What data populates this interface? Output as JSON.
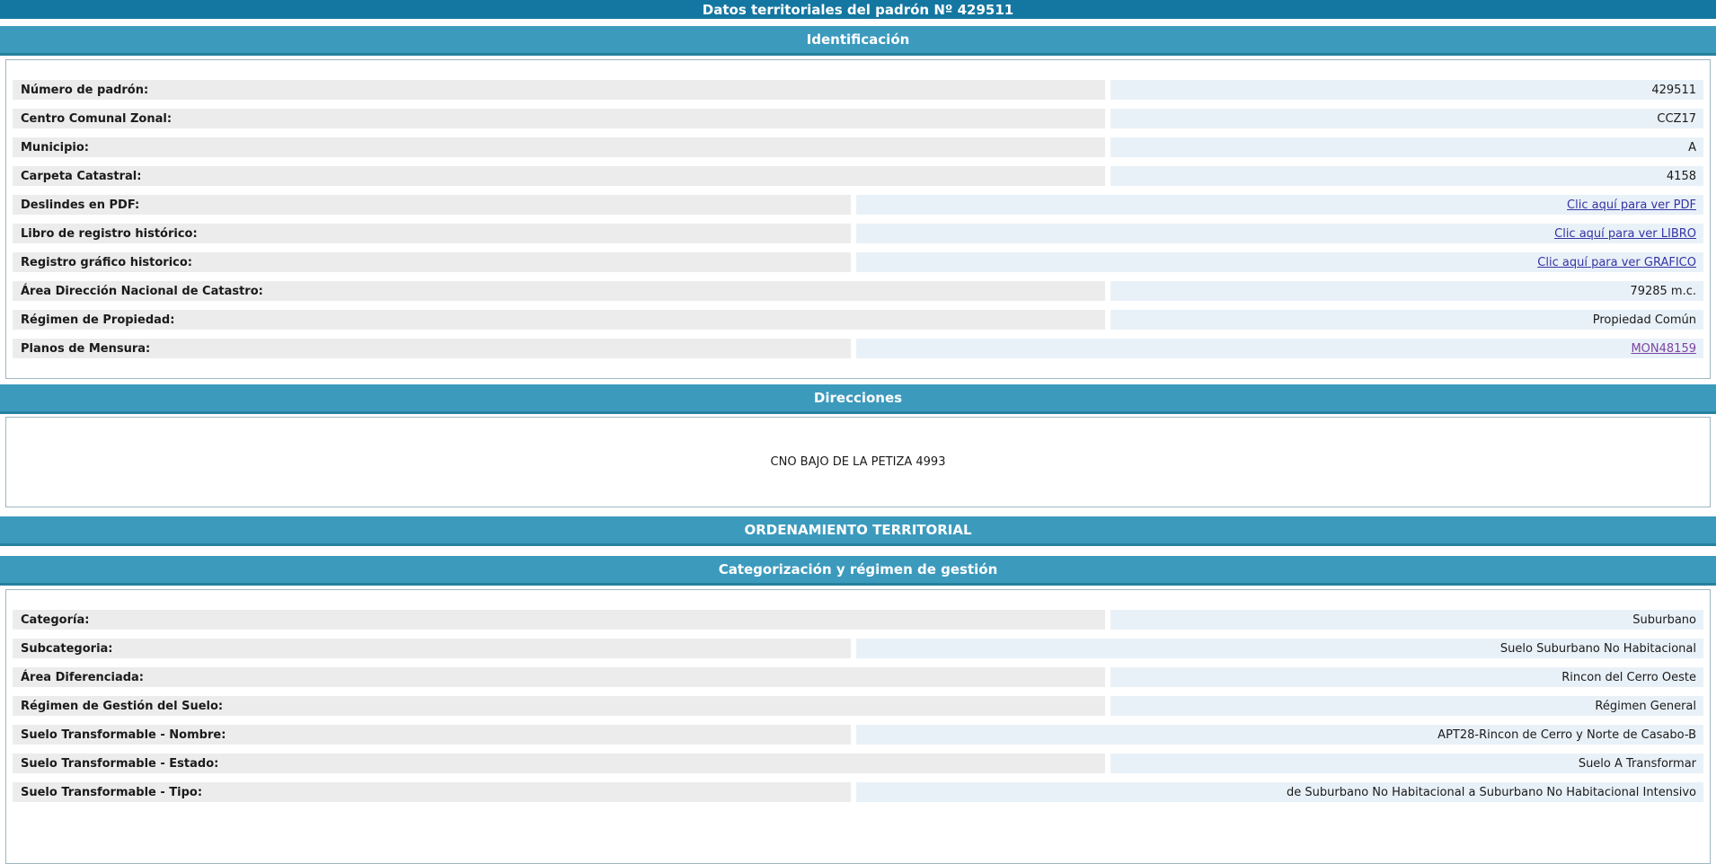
{
  "page_title": "Datos territoriales del padrón Nº 429511",
  "colors": {
    "title_bar": "#1477a1",
    "section_bar": "#3c9abd",
    "section_bar_border": "#26819f",
    "label_bg": "#ececec",
    "value_bg": "#e9f1f8",
    "box_border": "#9fb6c0",
    "link": "#3434a3",
    "visited_link": "#7d43a1"
  },
  "sections": {
    "identificacion": {
      "header": "Identificación",
      "rows": [
        {
          "label": "Número de padrón:",
          "value": "429511"
        },
        {
          "label": "Centro Comunal Zonal:",
          "value": "CCZ17"
        },
        {
          "label": "Municipio:",
          "value": "A"
        },
        {
          "label": "Carpeta Catastral:",
          "value": "4158"
        },
        {
          "label": "Deslindes en PDF:",
          "value": "Clic aquí para ver PDF"
        },
        {
          "label": "Libro de registro histórico:",
          "value": "Clic aquí para ver LIBRO"
        },
        {
          "label": "Registro gráfico historico:",
          "value": "Clic aquí para ver GRAFICO"
        },
        {
          "label": "Área Dirección Nacional de Catastro:",
          "value": "79285 m.c."
        },
        {
          "label": "Régimen de Propiedad:",
          "value": "Propiedad Común"
        },
        {
          "label": "Planos de Mensura:",
          "value": "MON48159"
        }
      ]
    },
    "direcciones": {
      "header": "Direcciones",
      "address": "CNO BAJO DE LA PETIZA 4993"
    },
    "ordenamiento": {
      "header": "ORDENAMIENTO TERRITORIAL"
    },
    "categorizacion": {
      "header": "Categorización y régimen de gestión",
      "rows": [
        {
          "label": "Categoría:",
          "value": "Suburbano"
        },
        {
          "label": "Subcategoria:",
          "value": "Suelo Suburbano No Habitacional"
        },
        {
          "label": "Área Diferenciada:",
          "value": "Rincon del Cerro Oeste"
        },
        {
          "label": "Régimen de Gestión del Suelo:",
          "value": "Régimen General"
        },
        {
          "label": "Suelo Transformable - Nombre:",
          "value": "APT28-Rincon de Cerro y Norte de Casabo-B"
        },
        {
          "label": "Suelo Transformable - Estado:",
          "value": "Suelo A Transformar"
        },
        {
          "label": "Suelo Transformable - Tipo:",
          "value": "de Suburbano No Habitacional a Suburbano No Habitacional Intensivo"
        }
      ]
    }
  }
}
